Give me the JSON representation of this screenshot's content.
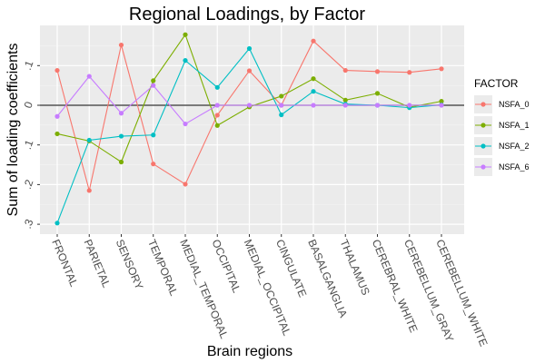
{
  "chart_data": {
    "type": "line",
    "title": "Regional Loadings, by Factor",
    "xlabel": "Brain regions",
    "ylabel": "Sum of loading coefficients",
    "categories": [
      "FRONTAL",
      "PARIETAL",
      "SENSORY",
      "TEMPORAL",
      "MEDIAL_TEMPORAL",
      "OCCIPITAL",
      "MEDIAL_OCCIPITAL",
      "CINGULATE",
      "BASALGANGLIA",
      "THALAMUS",
      "CEREBRAL_WHITE",
      "CEREBELLUM_GRAY",
      "CEREBELLUM_WHITE"
    ],
    "ylim": [
      -0.33,
      0.2
    ],
    "yticks": [
      -0.3,
      -0.2,
      -0.1,
      0.0,
      0.1
    ],
    "ytick_labels": [
      ".3",
      ".2",
      ".1",
      "0",
      ".1"
    ],
    "grid": true,
    "zero_line": true,
    "legend": {
      "title": "FACTOR",
      "position": "right"
    },
    "series": [
      {
        "name": "NSFA_0",
        "color": "#F8766D",
        "values": [
          0.088,
          -0.215,
          0.152,
          -0.148,
          -0.199,
          -0.025,
          0.087,
          0.0,
          0.162,
          0.088,
          0.085,
          0.083,
          0.092
        ]
      },
      {
        "name": "NSFA_1",
        "color": "#7CAE00",
        "values": [
          -0.072,
          -0.09,
          -0.143,
          0.062,
          0.178,
          -0.051,
          -0.004,
          0.023,
          0.067,
          0.013,
          0.03,
          -0.005,
          0.01
        ]
      },
      {
        "name": "NSFA_2",
        "color": "#00BFC4",
        "values": [
          -0.297,
          -0.088,
          -0.078,
          -0.075,
          0.113,
          0.045,
          0.143,
          -0.024,
          0.035,
          0.003,
          0.0,
          -0.006,
          0.001
        ]
      },
      {
        "name": "NSFA_6",
        "color": "#C77CFF",
        "values": [
          -0.028,
          0.073,
          -0.02,
          0.05,
          -0.047,
          0.0,
          0.0,
          0.0,
          0.0,
          0.0,
          0.0,
          0.0,
          0.0
        ]
      }
    ]
  }
}
